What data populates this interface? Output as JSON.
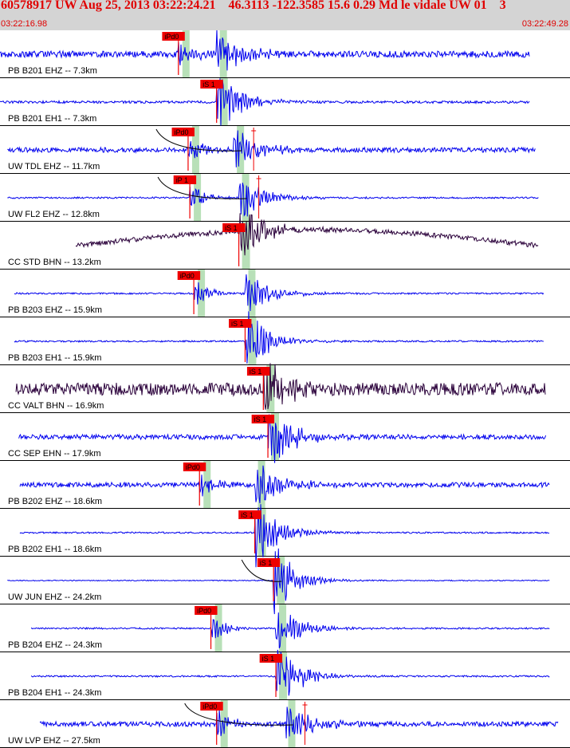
{
  "header": {
    "title": "60578917 UW Aug 25, 2013 03:22:24.21    46.3113 -122.3585 15.6 0.29 Md le vidale UW 01    3",
    "time_start": "03:22:16.98",
    "time_end": "03:22:49.28"
  },
  "chart_data": {
    "type": "line",
    "colors": {
      "trace_blue": "#0000ee",
      "trace_purple": "#2a003a",
      "pick": "#ee0000",
      "window": "#b8e0b8",
      "header_bg": "#d4d4d4"
    },
    "series": [
      {
        "name": "PB B201 EHZ -- 7.3km",
        "pick": "iPd0",
        "pick_t": 0.313,
        "s_t": 0.38,
        "amp": 4,
        "trend": 0,
        "col": "blue",
        "start": 0.0,
        "end": 0.93,
        "curve": false,
        "ghost": false
      },
      {
        "name": "PB B201 EH1 -- 7.3km",
        "pick": "iS 1",
        "pick_t": 0.38,
        "s_t": 0.38,
        "amp": 1.5,
        "trend": 0,
        "col": "blue",
        "start": 0.0,
        "end": 0.93,
        "curve": false,
        "ghost": false
      },
      {
        "name": "UW TDL EHZ -- 11.7km",
        "pick": "iPd0",
        "pick_t": 0.33,
        "s_t": 0.41,
        "amp": 3,
        "trend": 0,
        "col": "blue",
        "start": 0.013,
        "end": 0.94,
        "curve": true,
        "ghost": true
      },
      {
        "name": "UW FL2 EHZ -- 12.8km",
        "pick": "iP 1",
        "pick_t": 0.333,
        "s_t": 0.419,
        "amp": 1,
        "trend": 0,
        "col": "blue",
        "start": 0.013,
        "end": 0.945,
        "curve": true,
        "ghost": true
      },
      {
        "name": "CC STD BHN -- 13.2km",
        "pick": "iS 1",
        "pick_t": 0.419,
        "s_t": 0.419,
        "amp": 3,
        "trend": 20,
        "col": "purple",
        "start": 0.133,
        "end": 0.945,
        "curve": false,
        "ghost": false
      },
      {
        "name": "PB B203 EHZ -- 15.9km",
        "pick": "iPd0",
        "pick_t": 0.34,
        "s_t": 0.43,
        "amp": 1,
        "trend": 0,
        "col": "blue",
        "start": 0.025,
        "end": 0.955,
        "curve": false,
        "ghost": false
      },
      {
        "name": "PB B203 EH1 -- 15.9km",
        "pick": "iS 1",
        "pick_t": 0.43,
        "s_t": 0.43,
        "amp": 1,
        "trend": 0,
        "col": "blue",
        "start": 0.025,
        "end": 0.955,
        "curve": false,
        "ghost": false
      },
      {
        "name": "CC VALT BHN -- 16.9km",
        "pick": "iS 1",
        "pick_t": 0.462,
        "s_t": 0.462,
        "amp": 8,
        "trend": 0,
        "col": "purple",
        "start": 0.028,
        "end": 0.958,
        "curve": false,
        "ghost": false
      },
      {
        "name": "CC SEP EHN -- 17.9km",
        "pick": "iS 1",
        "pick_t": 0.47,
        "s_t": 0.47,
        "amp": 3,
        "trend": 0,
        "col": "blue",
        "start": 0.033,
        "end": 0.958,
        "curve": false,
        "ghost": false
      },
      {
        "name": "PB B202 EHZ -- 18.6km",
        "pick": "iPd0",
        "pick_t": 0.35,
        "s_t": 0.447,
        "amp": 3,
        "trend": 0,
        "col": "blue",
        "start": 0.035,
        "end": 0.965,
        "curve": false,
        "ghost": false
      },
      {
        "name": "PB B202 EH1 -- 18.6km",
        "pick": "iS 1",
        "pick_t": 0.447,
        "s_t": 0.447,
        "amp": 1,
        "trend": 0,
        "col": "blue",
        "start": 0.035,
        "end": 0.965,
        "curve": false,
        "ghost": false
      },
      {
        "name": "UW JUN EHZ -- 24.2km",
        "pick": "iS 1",
        "pick_t": 0.48,
        "s_t": 0.48,
        "amp": 0.6,
        "trend": 0,
        "col": "blue",
        "start": 0.013,
        "end": 0.965,
        "curve": true,
        "ghost": false
      },
      {
        "name": "PB B204 EHZ -- 24.3km",
        "pick": "iPd0",
        "pick_t": 0.37,
        "s_t": 0.484,
        "amp": 1,
        "trend": 0,
        "col": "blue",
        "start": 0.055,
        "end": 0.965,
        "curve": false,
        "ghost": false
      },
      {
        "name": "PB B204 EH1 -- 24.3km",
        "pick": "iS 1",
        "pick_t": 0.484,
        "s_t": 0.484,
        "amp": 1,
        "trend": 0,
        "col": "blue",
        "start": 0.055,
        "end": 0.965,
        "curve": false,
        "ghost": false
      },
      {
        "name": "UW LVP EHZ -- 27.5km",
        "pick": "iPd0",
        "pick_t": 0.38,
        "s_t": 0.5,
        "amp": 3,
        "trend": 0,
        "col": "blue",
        "start": 0.07,
        "end": 0.98,
        "curve": true,
        "ghost": true
      }
    ]
  }
}
